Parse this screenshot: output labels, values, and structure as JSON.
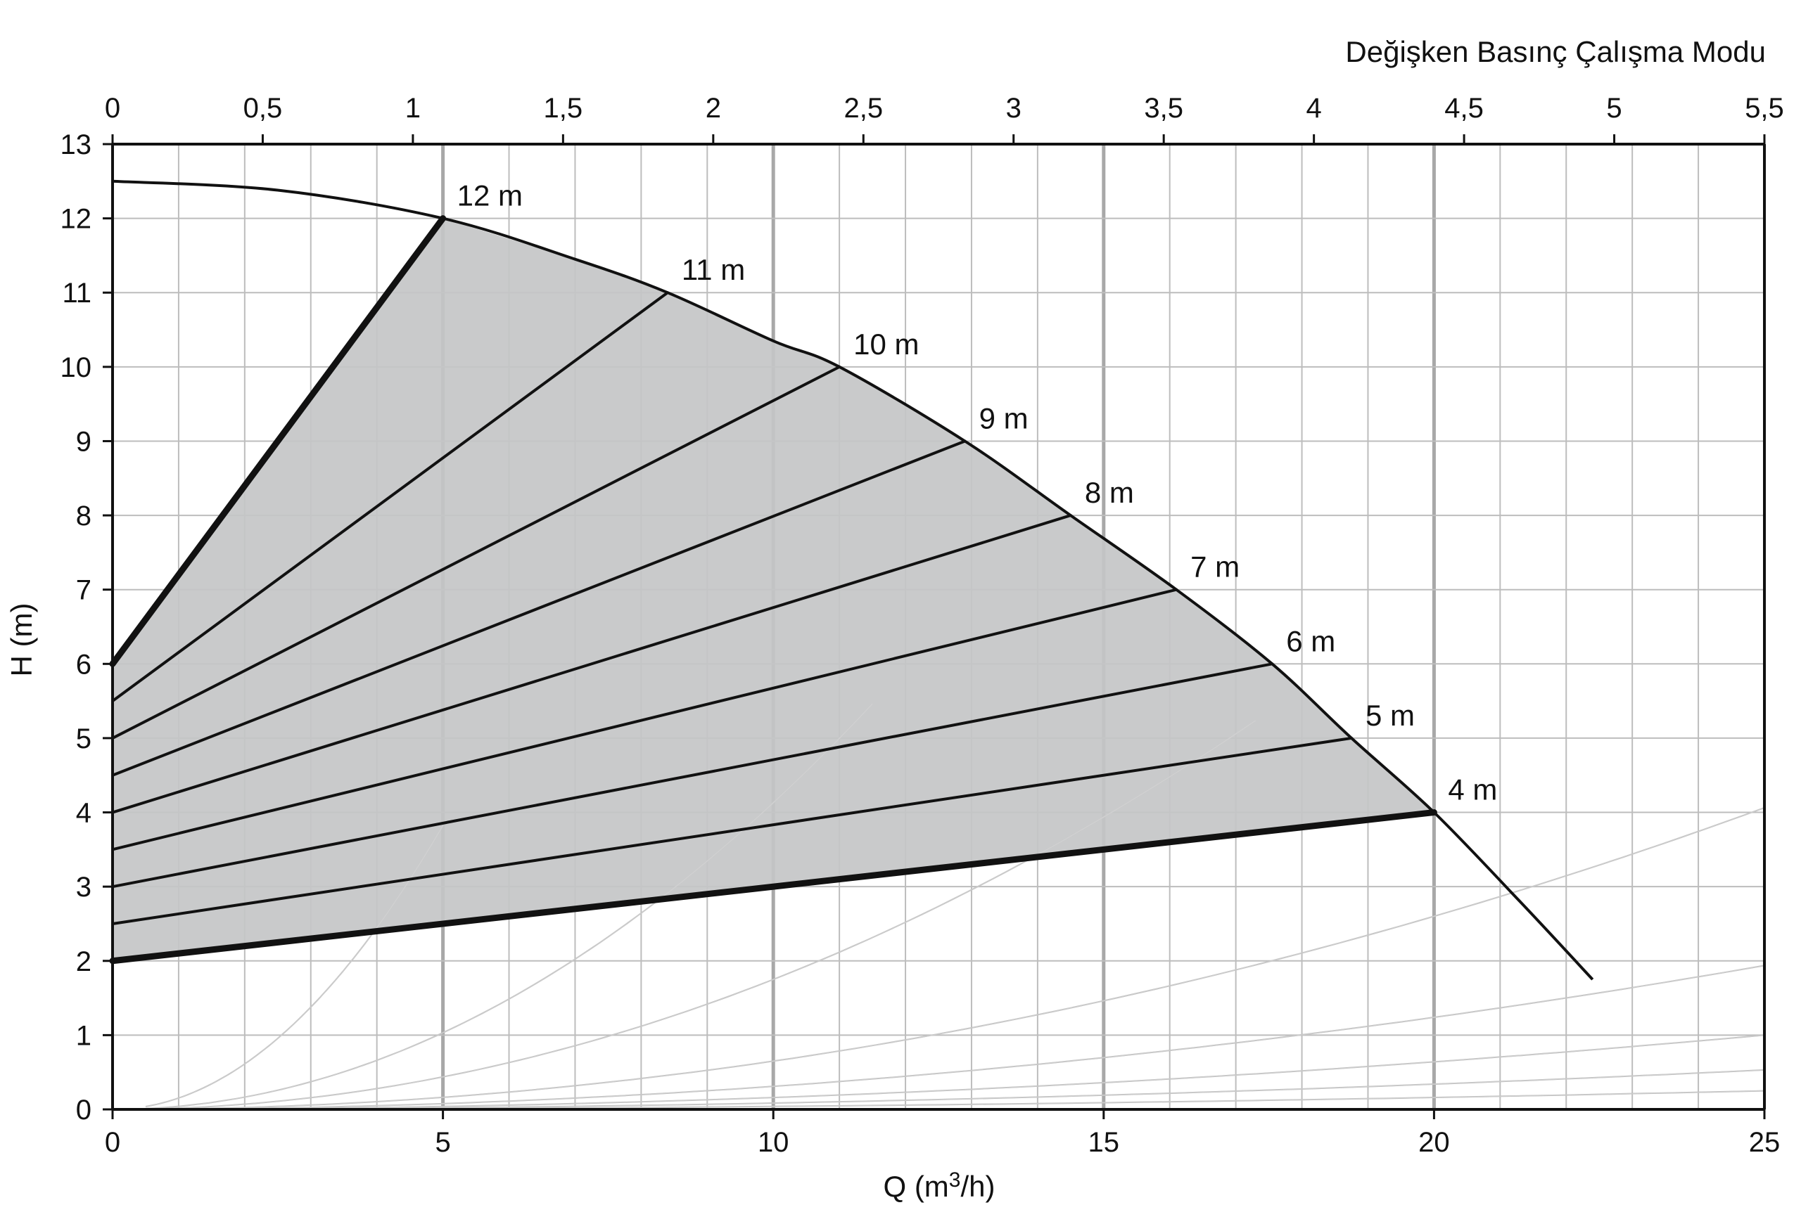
{
  "chart_data": {
    "type": "line",
    "title": "",
    "top_axis_title": "Değişken Basınç Çalışma Modu",
    "xlabel_prefix": "Q (m",
    "xlabel_sup": "3",
    "xlabel_suffix": "/h)",
    "ylabel": "H (m)",
    "xlim": [
      0,
      25
    ],
    "ylim": [
      0,
      13
    ],
    "x_ticks": [
      "0",
      "5",
      "10",
      "15",
      "20",
      "25"
    ],
    "x_tick_values": [
      0,
      5,
      10,
      15,
      20,
      25
    ],
    "top_x_ticks": [
      "0",
      "0,5",
      "1",
      "1,5",
      "2",
      "2,5",
      "3",
      "3,5",
      "4",
      "4,5",
      "5",
      "5,5"
    ],
    "top_x_tick_values": [
      0,
      0.5,
      1,
      1.5,
      2,
      2.5,
      3,
      3.5,
      4,
      4.5,
      5,
      5.5
    ],
    "y_ticks": [
      "0",
      "1",
      "2",
      "3",
      "4",
      "5",
      "6",
      "7",
      "8",
      "9",
      "10",
      "11",
      "12",
      "13"
    ],
    "y_tick_values": [
      0,
      1,
      2,
      3,
      4,
      5,
      6,
      7,
      8,
      9,
      10,
      11,
      12,
      13
    ],
    "grid": true,
    "max_curve": [
      [
        0,
        12.5
      ],
      [
        2.5,
        12.38
      ],
      [
        5,
        12.0
      ],
      [
        7,
        11.45
      ],
      [
        8.4,
        11.0
      ],
      [
        10,
        10.35
      ],
      [
        11,
        10.0
      ],
      [
        12.9,
        9.0
      ],
      [
        14.5,
        8.0
      ],
      [
        16.1,
        7.0
      ],
      [
        17.55,
        6.0
      ],
      [
        18.75,
        5.0
      ],
      [
        20.0,
        4.0
      ],
      [
        21.3,
        2.8
      ],
      [
        22.4,
        1.75
      ]
    ],
    "operating_area": [
      [
        0,
        6.0
      ],
      [
        5.0,
        12.0
      ],
      [
        7,
        11.45
      ],
      [
        8.4,
        11.0
      ],
      [
        10,
        10.35
      ],
      [
        11,
        10.0
      ],
      [
        12.9,
        9.0
      ],
      [
        14.5,
        8.0
      ],
      [
        16.1,
        7.0
      ],
      [
        17.55,
        6.0
      ],
      [
        18.75,
        5.0
      ],
      [
        20.0,
        4.0
      ],
      [
        0,
        2.0
      ]
    ],
    "series": [
      {
        "name": "12 m",
        "x": [
          0,
          5.0
        ],
        "y": [
          6.0,
          12.0
        ]
      },
      {
        "name": "11 m",
        "x": [
          0,
          8.4
        ],
        "y": [
          5.5,
          11.0
        ]
      },
      {
        "name": "10 m",
        "x": [
          0,
          11.0
        ],
        "y": [
          5.0,
          10.0
        ]
      },
      {
        "name": "9 m",
        "x": [
          0,
          12.9
        ],
        "y": [
          4.5,
          9.0
        ]
      },
      {
        "name": "8 m",
        "x": [
          0,
          14.5
        ],
        "y": [
          4.0,
          8.0
        ]
      },
      {
        "name": "7 m",
        "x": [
          0,
          16.1
        ],
        "y": [
          3.5,
          7.0
        ]
      },
      {
        "name": "6 m",
        "x": [
          0,
          17.55
        ],
        "y": [
          3.0,
          6.0
        ]
      },
      {
        "name": "5 m",
        "x": [
          0,
          18.75
        ],
        "y": [
          2.5,
          5.0
        ]
      },
      {
        "name": "4 m",
        "x": [
          0,
          20.0
        ],
        "y": [
          2.0,
          4.0
        ]
      }
    ],
    "system_curves": [
      {
        "k": 0.153,
        "x_start": 0.5,
        "x_end": 5.0
      },
      {
        "k": 0.0413,
        "x_start": 0.5,
        "x_end": 11.5
      },
      {
        "k": 0.0175,
        "x_start": 0.5,
        "x_end": 17.3
      },
      {
        "k": 0.0065,
        "x_start": 0.5,
        "x_end": 25
      },
      {
        "k": 0.0031,
        "x_start": 0.5,
        "x_end": 25
      },
      {
        "k": 0.0016,
        "x_start": 0.5,
        "x_end": 25
      },
      {
        "k": 0.00085,
        "x_start": 0.5,
        "x_end": 25
      },
      {
        "k": 0.0004,
        "x_start": 0.5,
        "x_end": 25
      }
    ],
    "colors": {
      "area_fill": "#c4c5c7",
      "curve": "#111111",
      "grid_minor": "#bdbdbd",
      "grid_major": "#a8a8a8",
      "system_curve": "#b5b5b5"
    }
  }
}
